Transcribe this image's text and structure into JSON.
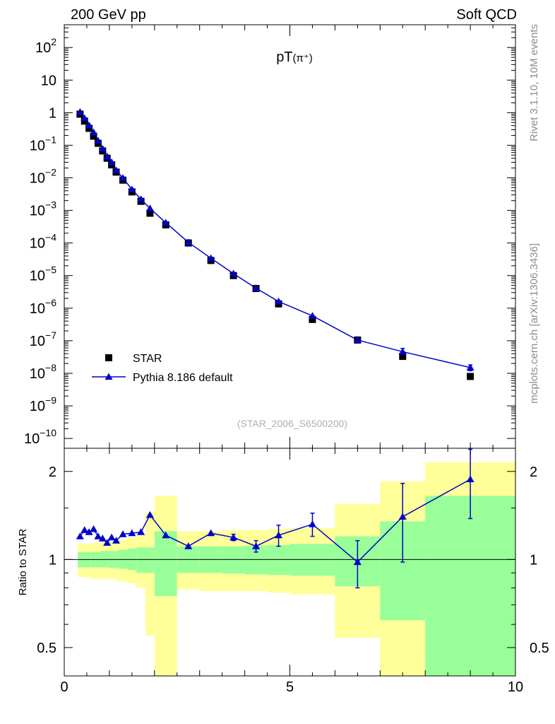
{
  "header": {
    "left": "200 GeV pp",
    "right": "Soft QCD"
  },
  "side_labels": {
    "rivet": "Rivet 3.1.10,  10M events",
    "mcplots": "mcplots.cern.ch [arXiv:1306.3436]"
  },
  "colors": {
    "data": "#000000",
    "mc": "#0000cc",
    "band_inner": "#99ff99",
    "band_outer": "#ffff99"
  },
  "chart_data": [
    {
      "type": "scatter",
      "title": "pT(π⁺)",
      "watermark": "(STAR_2006_S6500200)",
      "yscale": "log",
      "xlim": [
        0,
        10
      ],
      "ylim": [
        5e-11,
        500
      ],
      "ytick_labels": [
        "10^-10",
        "10^-9",
        "10^-8",
        "10^-7",
        "10^-6",
        "10^-5",
        "10^-4",
        "10^-3",
        "10^-2",
        "10^-1",
        "1",
        "10",
        "10^2"
      ],
      "legend": {
        "position": "bottom-left",
        "entries": [
          "STAR",
          "Pythia 8.186 default"
        ]
      },
      "series": [
        {
          "name": "STAR",
          "marker": "square",
          "x": [
            0.35,
            0.45,
            0.55,
            0.65,
            0.75,
            0.85,
            0.95,
            1.05,
            1.15,
            1.3,
            1.5,
            1.7,
            1.9,
            2.25,
            2.75,
            3.25,
            3.75,
            4.25,
            4.75,
            5.5,
            6.5,
            7.5,
            9.0
          ],
          "y": [
            0.9,
            0.55,
            0.33,
            0.19,
            0.115,
            0.067,
            0.04,
            0.025,
            0.015,
            0.0085,
            0.0037,
            0.0019,
            0.00082,
            0.00036,
            0.0001,
            2.9e-05,
            1e-05,
            4e-06,
            1.35e-06,
            4.5e-07,
            1.05e-07,
            3.3e-08,
            8e-09
          ]
        },
        {
          "name": "Pythia 8.186 default",
          "marker": "triangle",
          "x": [
            0.35,
            0.45,
            0.55,
            0.65,
            0.75,
            0.85,
            0.95,
            1.05,
            1.15,
            1.3,
            1.5,
            1.7,
            1.9,
            2.25,
            2.75,
            3.25,
            3.75,
            4.25,
            4.75,
            5.5,
            6.5,
            7.5,
            9.0
          ],
          "y": [
            1.05,
            0.68,
            0.41,
            0.25,
            0.138,
            0.078,
            0.045,
            0.03,
            0.017,
            0.0099,
            0.0044,
            0.0022,
            0.00115,
            0.00042,
            0.000105,
            3.4e-05,
            1.15e-05,
            4.1e-06,
            1.6e-06,
            5.8e-07,
            1.05e-07,
            4.6e-08,
            1.5e-08
          ],
          "yerr": [
            0,
            0,
            0,
            0,
            0,
            0,
            0,
            0,
            0,
            0,
            0,
            0,
            0,
            0,
            0,
            0,
            0,
            0,
            0,
            0,
            0,
            1.2e-08,
            3e-09
          ]
        }
      ]
    },
    {
      "type": "scatter",
      "ylabel": "Ratio to STAR",
      "yscale": "log",
      "xlim": [
        0,
        10
      ],
      "ylim": [
        0.4,
        2.4
      ],
      "xtick_labels": [
        "0",
        "5",
        "10"
      ],
      "ytick_labels": [
        "0.5",
        "1",
        "2"
      ],
      "reference_line": 1.0,
      "bands": {
        "edges": [
          0.3,
          0.4,
          0.5,
          0.6,
          0.7,
          0.8,
          0.9,
          1.0,
          1.1,
          1.2,
          1.4,
          1.6,
          1.8,
          2.0,
          2.5,
          3.0,
          3.5,
          4.0,
          4.5,
          5.0,
          6.0,
          7.0,
          8.0,
          10.0
        ],
        "inner_low": [
          0.94,
          0.94,
          0.94,
          0.94,
          0.94,
          0.94,
          0.94,
          0.935,
          0.935,
          0.93,
          0.92,
          0.9,
          0.9,
          0.75,
          0.9,
          0.9,
          0.895,
          0.89,
          0.885,
          0.88,
          0.81,
          0.62,
          0.36
        ],
        "inner_high": [
          1.06,
          1.06,
          1.06,
          1.06,
          1.06,
          1.07,
          1.07,
          1.07,
          1.07,
          1.08,
          1.09,
          1.1,
          1.1,
          1.25,
          1.11,
          1.11,
          1.11,
          1.115,
          1.12,
          1.13,
          1.2,
          1.35,
          1.65
        ],
        "outer_low": [
          0.87,
          0.87,
          0.87,
          0.86,
          0.86,
          0.86,
          0.86,
          0.86,
          0.85,
          0.84,
          0.83,
          0.8,
          0.55,
          0.36,
          0.79,
          0.78,
          0.78,
          0.78,
          0.77,
          0.76,
          0.54,
          0.36,
          0.36
        ],
        "outer_high": [
          1.13,
          1.13,
          1.13,
          1.14,
          1.14,
          1.15,
          1.15,
          1.15,
          1.16,
          1.17,
          1.19,
          1.22,
          1.45,
          1.65,
          1.25,
          1.25,
          1.26,
          1.26,
          1.27,
          1.28,
          1.55,
          1.85,
          2.15
        ]
      },
      "series": [
        {
          "name": "Pythia 8.186 default",
          "x": [
            0.35,
            0.45,
            0.55,
            0.65,
            0.75,
            0.85,
            0.95,
            1.05,
            1.15,
            1.3,
            1.5,
            1.7,
            1.9,
            2.25,
            2.75,
            3.25,
            3.75,
            4.25,
            4.75,
            5.5,
            6.5,
            7.5,
            9.0
          ],
          "y": [
            1.2,
            1.26,
            1.24,
            1.27,
            1.2,
            1.18,
            1.14,
            1.19,
            1.16,
            1.22,
            1.23,
            1.24,
            1.42,
            1.21,
            1.11,
            1.23,
            1.19,
            1.11,
            1.21,
            1.32,
            0.98,
            1.4,
            1.88
          ],
          "yerr": [
            0,
            0,
            0,
            0,
            0,
            0,
            0,
            0,
            0,
            0,
            0,
            0,
            0,
            0,
            0,
            0,
            0.03,
            0.05,
            0.1,
            0.12,
            0.18,
            0.42,
            0.5
          ]
        }
      ]
    }
  ]
}
